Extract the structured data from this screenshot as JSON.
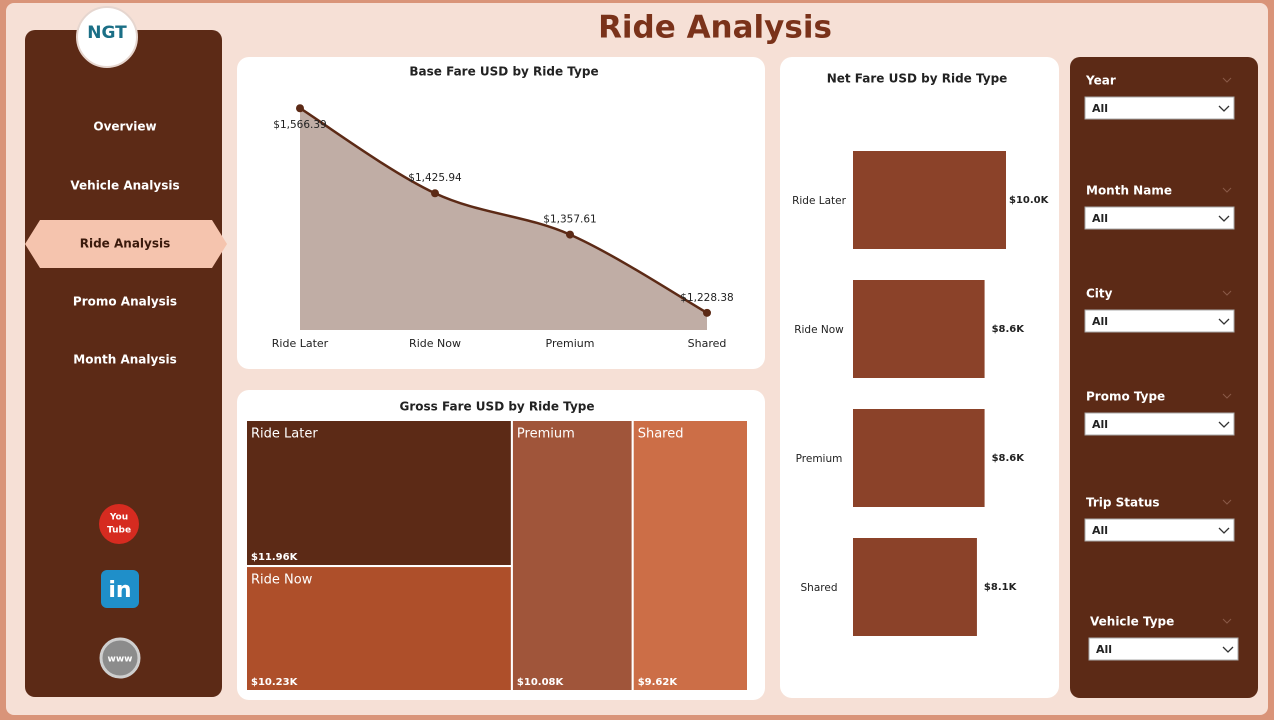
{
  "title": "Ride Analysis",
  "logo": {
    "text": "NGT"
  },
  "nav": [
    "Overview",
    "Vehicle Analysis",
    "Ride Analysis",
    "Promo Analysis",
    "Month Analysis"
  ],
  "active_nav": 2,
  "icons": [
    [
      "You",
      "Tube"
    ],
    [
      "in"
    ],
    [
      "www"
    ]
  ],
  "filters": [
    {
      "label": "Year",
      "value": "All"
    },
    {
      "label": "Month Name",
      "value": "All"
    },
    {
      "label": "City",
      "value": "All"
    },
    {
      "label": "Promo Type",
      "value": "All"
    },
    {
      "label": "Trip Status",
      "value": "All"
    },
    {
      "label": "Vehicle Type",
      "value": "All"
    }
  ],
  "chart_data": [
    {
      "type": "area",
      "title": "Base Fare USD by Ride Type",
      "categories": [
        "Ride Later",
        "Ride Now",
        "Premium",
        "Shared"
      ],
      "values": [
        1566.39,
        1425.94,
        1357.61,
        1228.38
      ],
      "value_labels": [
        "$1,566.39",
        "$1,425.94",
        "$1,357.61",
        "$1,228.38"
      ],
      "ylim": [
        1200,
        1580
      ],
      "color": "#5c2a16",
      "fill": "#c0ada5"
    },
    {
      "type": "treemap",
      "title": "Gross Fare USD by Ride Type",
      "categories": [
        "Ride Later",
        "Ride Now",
        "Premium",
        "Shared"
      ],
      "values": [
        11960,
        10230,
        10080,
        9620
      ],
      "value_labels": [
        "$11.96K",
        "$10.23K",
        "$10.08K",
        "$9.62K"
      ],
      "colors": [
        "#5c2a16",
        "#ae4f2a",
        "#a0553a",
        "#cc6e47"
      ]
    },
    {
      "type": "bar",
      "orientation": "horizontal",
      "title": "Net Fare USD by Ride Type",
      "categories": [
        "Ride Later",
        "Ride Now",
        "Premium",
        "Shared"
      ],
      "values": [
        10000,
        8600,
        8600,
        8100
      ],
      "value_labels": [
        "$10.0K",
        "$8.6K",
        "$8.6K",
        "$8.1K"
      ],
      "xlim": [
        0,
        10000
      ],
      "color": "#8b4229"
    }
  ]
}
